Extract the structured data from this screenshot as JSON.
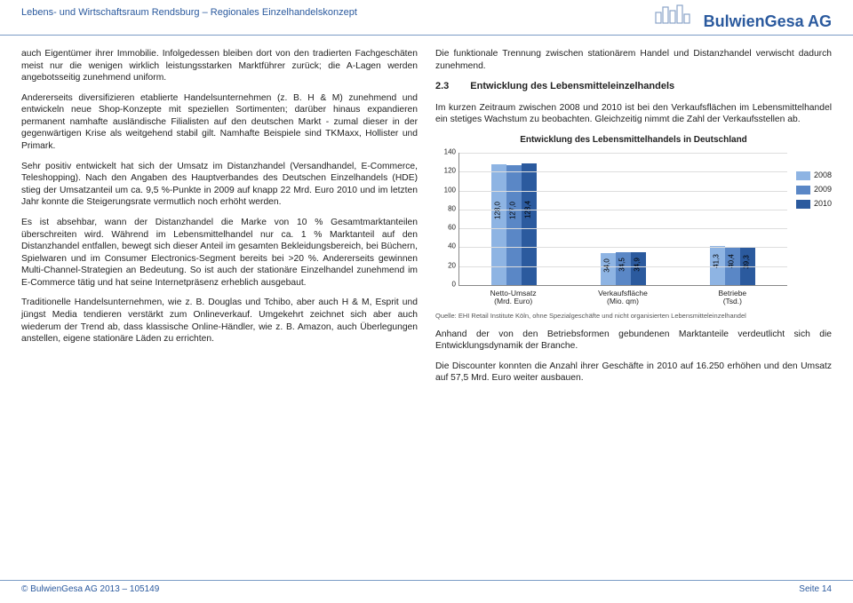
{
  "header": {
    "left": "Lebens- und Wirtschaftsraum Rendsburg – Regionales Einzelhandelskonzept",
    "right": "BulwienGesa AG"
  },
  "footer": {
    "left": "© BulwienGesa AG 2013 – 105149",
    "right": "Seite 14"
  },
  "left_col": {
    "p1": "auch Eigentümer ihrer Immobilie. Infolgedessen bleiben dort von den tradierten Fachgeschäten meist nur die wenigen wirklich leistungsstarken Marktführer zurück; die A-Lagen werden angebotsseitig zunehmend uniform.",
    "p2": "Andererseits diversifizieren etablierte Handelsunternehmen (z. B. H & M) zunehmend und entwickeln neue Shop-Konzepte mit speziellen Sortimenten; darüber hinaus expandieren permanent namhafte ausländische Filialisten auf den deutschen Markt - zumal dieser in der gegenwärtigen Krise als weitgehend stabil gilt. Namhafte Beispiele sind TKMaxx, Hollister und Primark.",
    "p3": "Sehr positiv entwickelt hat sich der Umsatz im Distanzhandel (Versandhandel, E-Commerce, Teleshopping). Nach den Angaben des Hauptverbandes des Deutschen Einzelhandels (HDE) stieg der Umsatzanteil um ca. 9,5 %-Punkte in 2009 auf knapp 22 Mrd. Euro 2010 und im letzten Jahr konnte die Steigerungsrate vermutlich noch erhöht werden.",
    "p4": "Es ist absehbar, wann der Distanzhandel die Marke von 10 % Gesamtmarktanteilen überschreiten wird. Während im Lebensmittelhandel nur ca. 1 % Marktanteil auf den Distanzhandel entfallen, bewegt sich dieser Anteil im gesamten Bekleidungsbereich, bei Büchern, Spielwaren und im Consumer Electronics-Segment bereits bei >20 %. Andererseits gewinnen Multi-Channel-Strategien an Bedeutung. So ist auch der stationäre Einzelhandel zunehmend im E-Commerce tätig und hat seine Internetpräsenz erheblich ausgebaut.",
    "p5": "Traditionelle Handelsunternehmen, wie z. B. Douglas und Tchibo, aber auch H & M, Esprit und jüngst Media tendieren verstärkt zum Onlineverkauf. Umgekehrt zeichnet sich aber auch wiederum der Trend ab, dass klassische Online-Händler, wie z. B. Amazon, auch Überlegungen anstellen, eigene stationäre Läden zu errichten."
  },
  "right_col": {
    "p1": "Die funktionale Trennung zwischen stationärem Handel und Distanzhandel verwischt dadurch zunehmend.",
    "heading_num": "2.3",
    "heading_text": "Entwicklung des Lebensmitteleinzelhandels",
    "p2": "Im kurzen Zeitraum zwischen 2008 und 2010 ist bei den Verkaufsflächen im Lebensmittelhandel ein stetiges Wachstum zu beobachten. Gleichzeitig nimmt die Zahl der Verkaufsstellen ab.",
    "p3": "Anhand der von den Betriebsformen gebundenen Marktanteile verdeutlicht sich die Entwicklungsdynamik der Branche.",
    "p4": "Die Discounter konnten die Anzahl ihrer Geschäfte in 2010 auf 16.250 erhöhen und den Umsatz auf 57,5 Mrd. Euro weiter ausbauen."
  },
  "chart": {
    "title": "Entwicklung des Lebensmittelhandels in Deutschland",
    "y_max": 140,
    "y_ticks": [
      0,
      20,
      40,
      60,
      80,
      100,
      120,
      140
    ],
    "groups": [
      {
        "label_l1": "Netto-Umsatz",
        "label_l2": "(Mrd. Euro)",
        "values": [
          128.0,
          127.0,
          128.4
        ],
        "labels": [
          "128,0",
          "127,0",
          "128,4"
        ]
      },
      {
        "label_l1": "Verkaufsfläche",
        "label_l2": "(Mio. qm)",
        "values": [
          34.0,
          34.5,
          34.9
        ],
        "labels": [
          "34,0",
          "34,5",
          "34,9"
        ]
      },
      {
        "label_l1": "Betriebe",
        "label_l2": "(Tsd.)",
        "values": [
          41.3,
          40.4,
          39.3
        ],
        "labels": [
          "41,3",
          "40,4",
          "39,3"
        ]
      }
    ],
    "legend": [
      {
        "year": "2008",
        "color": "#8eb4e3"
      },
      {
        "year": "2009",
        "color": "#5a87c6"
      },
      {
        "year": "2010",
        "color": "#2b5a9e"
      }
    ],
    "source": "Quelle: EHI Retail Institute Köln, ohne Spezialgeschäfte und nicht organisierten Lebensmitteleinzelhandel"
  }
}
